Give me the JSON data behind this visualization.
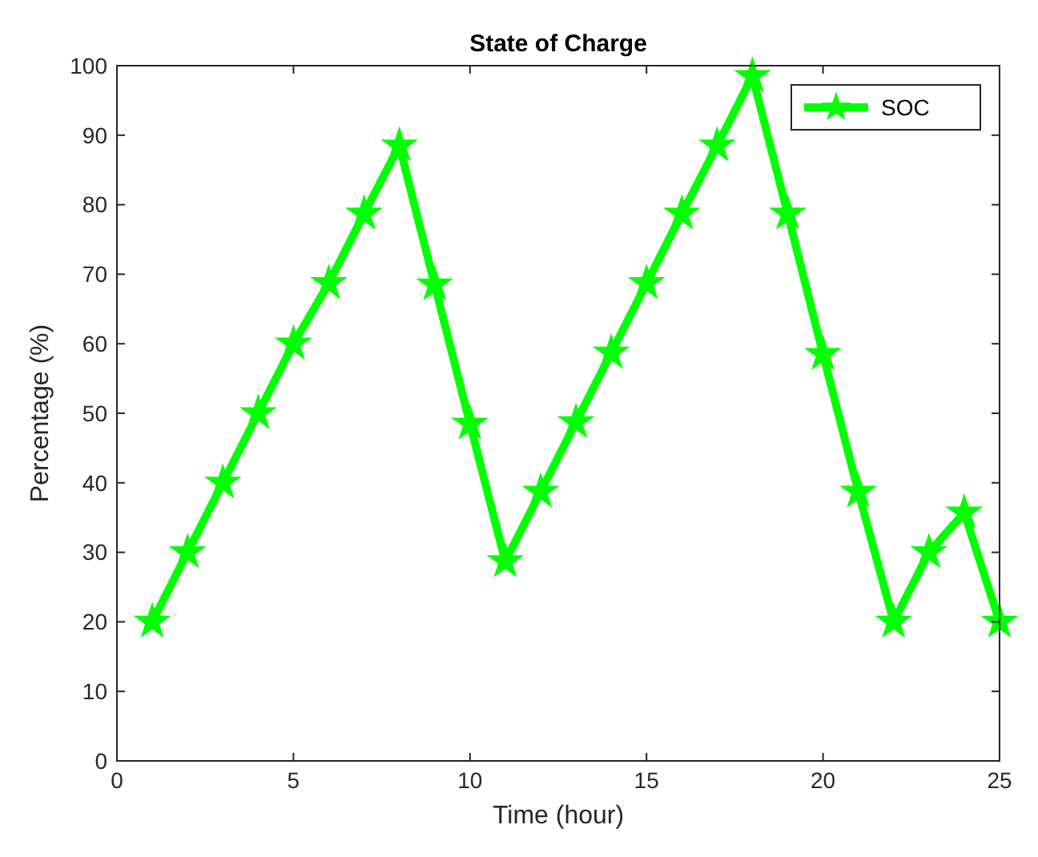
{
  "chart_data": {
    "type": "line",
    "title": "State of Charge",
    "xlabel": "Time (hour)",
    "ylabel": "Percentage (%)",
    "x": [
      1,
      2,
      3,
      4,
      5,
      6,
      7,
      8,
      9,
      10,
      11,
      12,
      13,
      14,
      15,
      16,
      17,
      18,
      19,
      20,
      21,
      22,
      23,
      24,
      25
    ],
    "series": [
      {
        "name": "SOC",
        "color": "#00ff00",
        "values": [
          20,
          30,
          40,
          50,
          60,
          68.7,
          78.7,
          88.5,
          68.5,
          48.5,
          28.7,
          38.7,
          48.7,
          58.7,
          68.7,
          78.7,
          88.5,
          98.5,
          78.7,
          58.5,
          38.7,
          20,
          30,
          35.7,
          20
        ]
      }
    ],
    "xlim": [
      0,
      25
    ],
    "xticks": [
      0,
      5,
      10,
      15,
      20,
      25
    ],
    "ylim": [
      0,
      100
    ],
    "yticks": [
      0,
      10,
      20,
      30,
      40,
      50,
      60,
      70,
      80,
      90,
      100
    ],
    "grid": false,
    "legend": "top right",
    "marker": "star",
    "line_style": "solid"
  }
}
